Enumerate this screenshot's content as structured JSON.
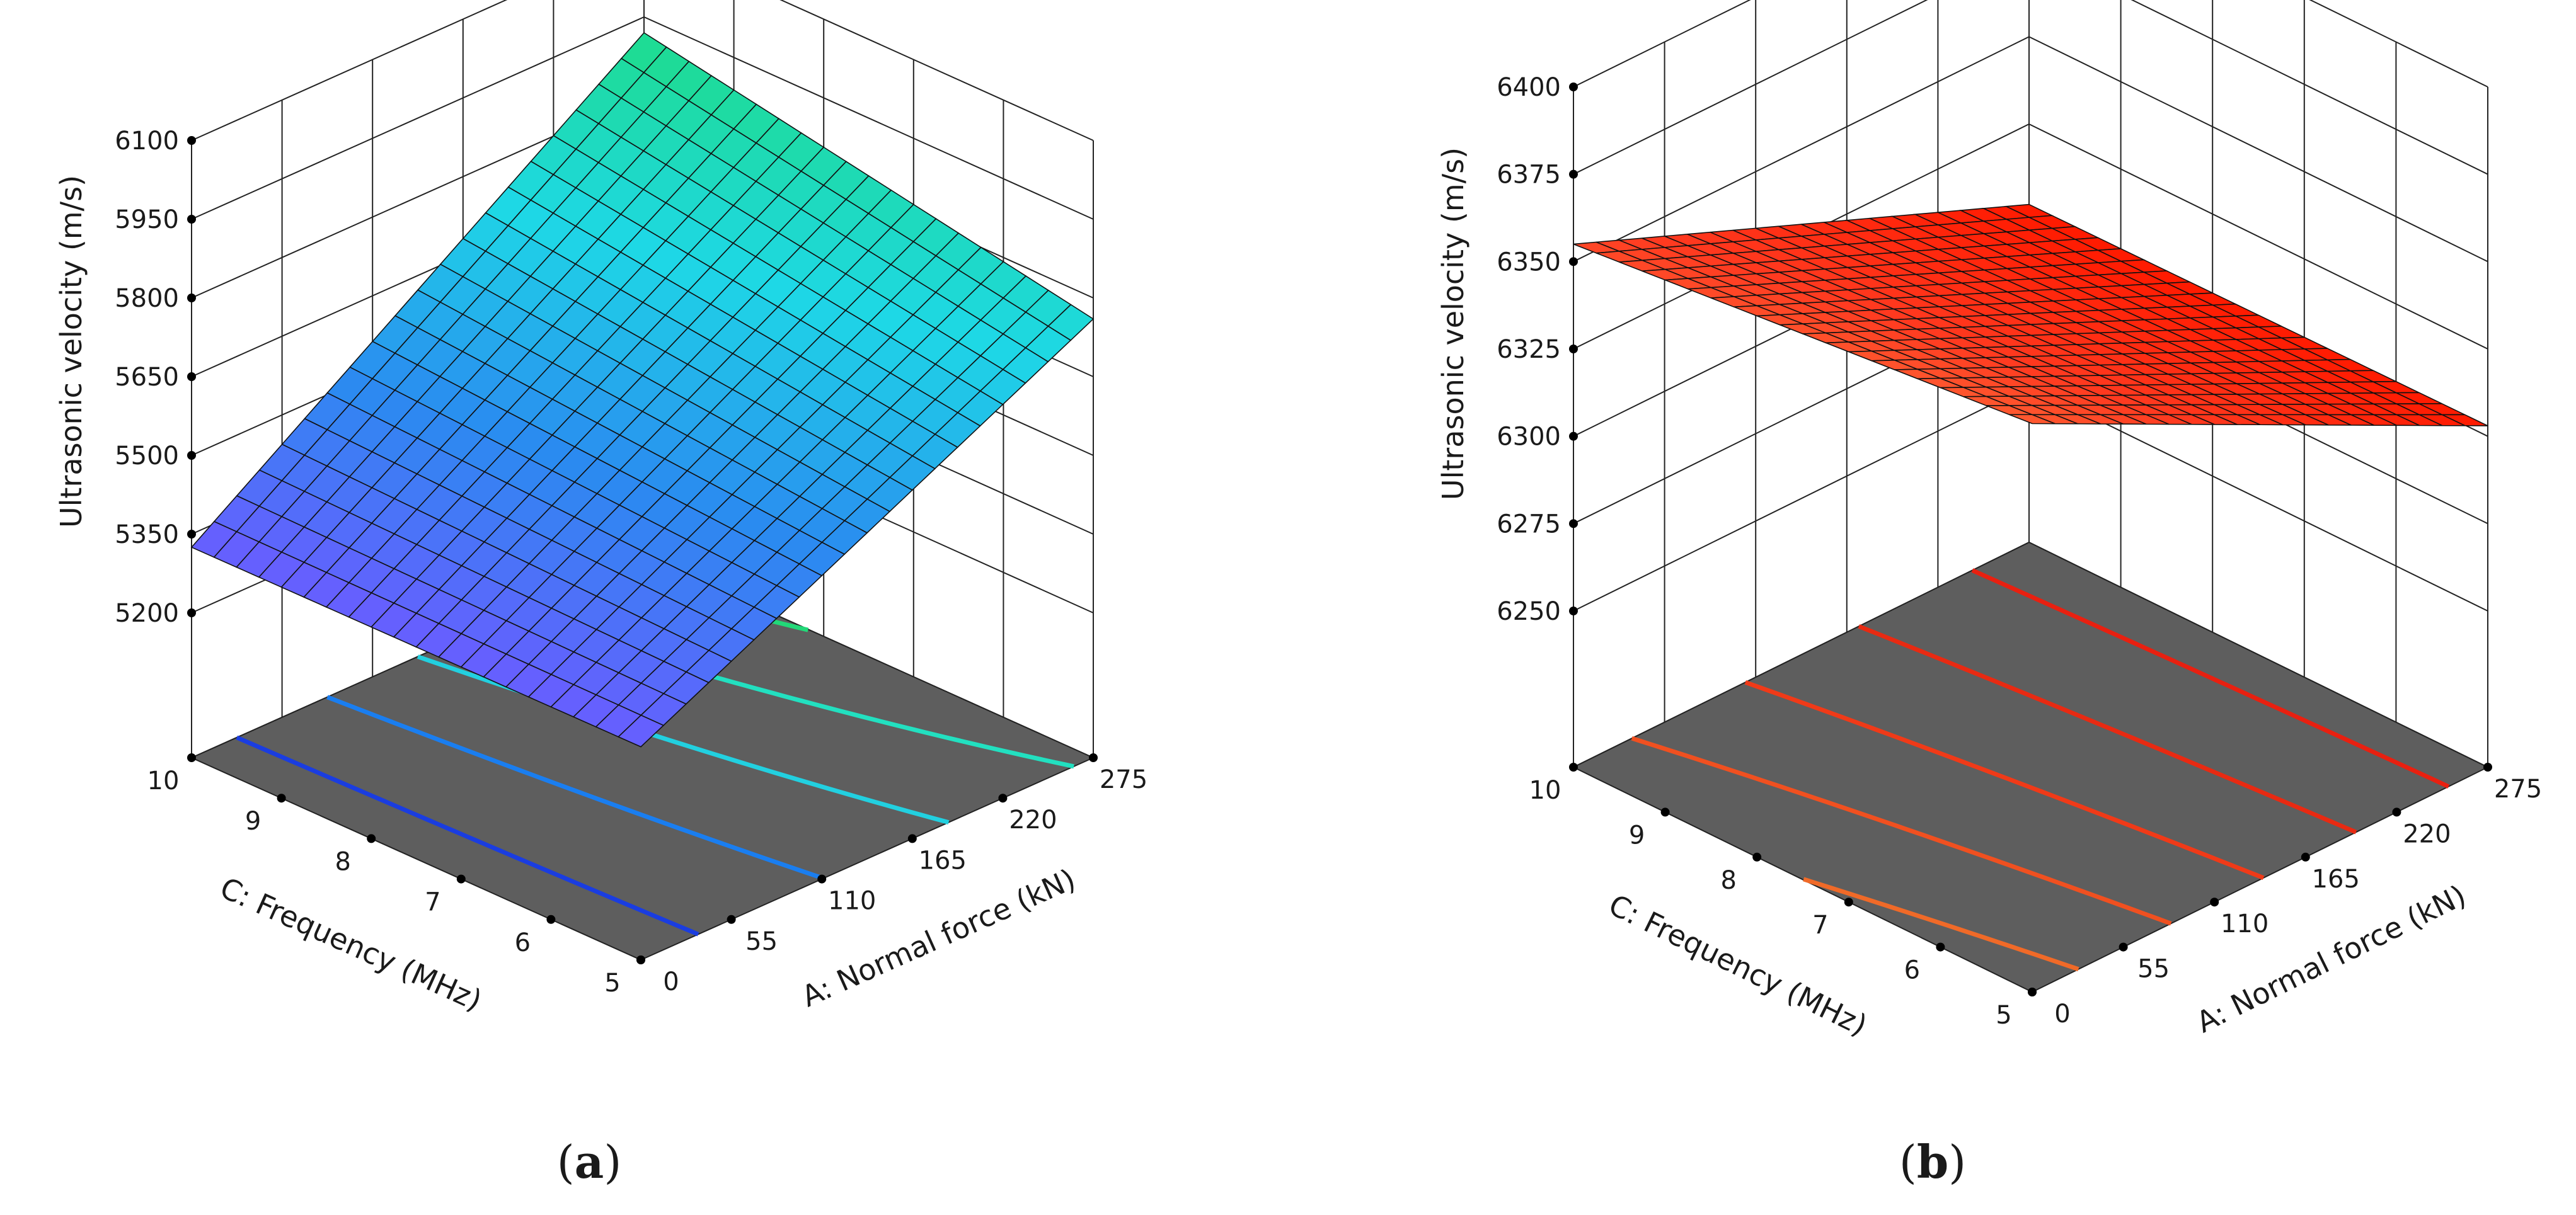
{
  "chart_data": [
    {
      "type": "surface3d",
      "panel_label": "a",
      "zlabel": "Ultrasonic velocity (m/s)",
      "xlabel": "A: Normal force (kN)",
      "ylabel": "C: Frequency (MHz)",
      "x_ticks": [
        "0",
        "55",
        "110",
        "165",
        "220",
        "275"
      ],
      "y_ticks": [
        "5",
        "6",
        "7",
        "8",
        "9",
        "10"
      ],
      "z_ticks": [
        "5200",
        "5350",
        "5500",
        "5650",
        "5800",
        "5950",
        "6100"
      ],
      "xlim": [
        0,
        275
      ],
      "ylim": [
        5,
        10
      ],
      "zlim": [
        5200,
        6100
      ],
      "corners": {
        "x0_y5": 5330,
        "x275_y5": 5760,
        "x0_y10": 5325,
        "x275_y10": 5920
      },
      "colormap": [
        "#6a5cff",
        "#2a8bf0",
        "#1ed8e6",
        "#1edc8c"
      ],
      "contour_colors": [
        "#1a3de0",
        "#1a7ef0",
        "#22d0e0",
        "#22e0c0",
        "#22d878"
      ],
      "floor_color": "#5e5e5e",
      "grid": true
    },
    {
      "type": "surface3d",
      "panel_label": "b",
      "zlabel": "Ultrasonic velocity (m/s)",
      "xlabel": "A: Normal force (kN)",
      "ylabel": "C: Frequency (MHz)",
      "x_ticks": [
        "0",
        "55",
        "110",
        "165",
        "220",
        "275"
      ],
      "y_ticks": [
        "5",
        "6",
        "7",
        "8",
        "9",
        "10"
      ],
      "z_ticks": [
        "6250",
        "6275",
        "6300",
        "6325",
        "6350",
        "6375",
        "6400"
      ],
      "xlim": [
        0,
        275
      ],
      "ylim": [
        5,
        10
      ],
      "zlim": [
        6250,
        6400
      ],
      "corners": {
        "x0_y5": 6368,
        "x275_y5": 6303,
        "x0_y10": 6355,
        "x275_y10": 6302
      },
      "colormap": [
        "#ff1a00",
        "#ff2a10",
        "#ff3a20",
        "#ff5a30"
      ],
      "contour_colors": [
        "#e82010",
        "#e82a12",
        "#f03a18",
        "#f05020",
        "#f06a28"
      ],
      "floor_color": "#5e5e5e",
      "grid": true
    }
  ]
}
